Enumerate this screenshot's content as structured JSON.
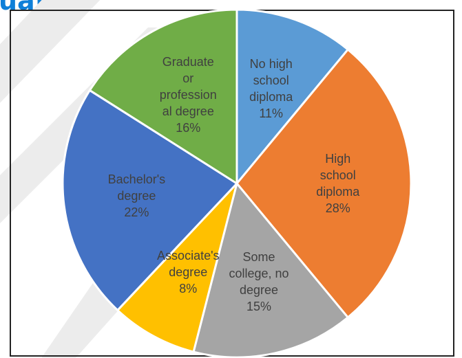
{
  "heading": "uated",
  "chart_data": {
    "type": "pie",
    "categories": [
      "No high school diploma",
      "High school diploma",
      "Some college, no degree",
      "Associate's degree",
      "Bachelor's degree",
      "Graduate or professional degree"
    ],
    "values": [
      11,
      28,
      15,
      8,
      22,
      16
    ],
    "value_labels": [
      "11%",
      "28%",
      "15%",
      "8%",
      "22%",
      "16%"
    ],
    "label_lines": [
      [
        "No high",
        "school",
        "diploma"
      ],
      [
        "High",
        "school",
        "diploma"
      ],
      [
        "Some",
        "college, no",
        "degree"
      ],
      [
        "Associate's",
        "degree"
      ],
      [
        "Bachelor's",
        "degree"
      ],
      [
        "Graduate",
        "or",
        "profession",
        "al degree"
      ]
    ],
    "colors": [
      "#5b9bd5",
      "#ed7d31",
      "#a5a5a5",
      "#ffc000",
      "#4472c4",
      "#70ad47"
    ],
    "start_angle": "12 o'clock",
    "direction": "clockwise",
    "legend": "none",
    "title": ""
  }
}
